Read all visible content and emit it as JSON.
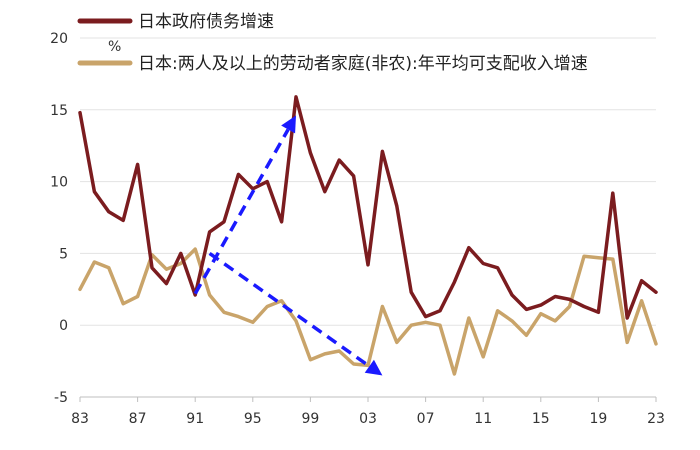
{
  "chart_data": {
    "type": "line",
    "title": "",
    "unit_label": "%",
    "xlabel": "",
    "ylabel": "",
    "x": [
      1983,
      1984,
      1985,
      1986,
      1987,
      1988,
      1989,
      1990,
      1991,
      1992,
      1993,
      1994,
      1995,
      1996,
      1997,
      1998,
      1999,
      2000,
      2001,
      2002,
      2003,
      2004,
      2005,
      2006,
      2007,
      2008,
      2009,
      2010,
      2011,
      2012,
      2013,
      2014,
      2015,
      2016,
      2017,
      2018,
      2019,
      2020,
      2021,
      2022,
      2023
    ],
    "x_tick_labels": [
      "83",
      "87",
      "91",
      "95",
      "99",
      "03",
      "07",
      "11",
      "15",
      "19",
      "23"
    ],
    "x_tick_years": [
      1983,
      1987,
      1991,
      1995,
      1999,
      2003,
      2007,
      2011,
      2015,
      2019,
      2023
    ],
    "y_ticks": [
      -5,
      0,
      5,
      10,
      15,
      20
    ],
    "ylim": [
      -5,
      20
    ],
    "grid": "horizontal",
    "legend_position": "top",
    "series": [
      {
        "name": "日本政府债务增速",
        "color": "#7b1c1f",
        "values": [
          14.8,
          9.3,
          7.9,
          7.3,
          11.2,
          4.0,
          2.9,
          5.0,
          2.1,
          6.5,
          7.2,
          10.5,
          9.5,
          10.0,
          7.2,
          15.9,
          12.0,
          9.3,
          11.5,
          10.4,
          4.2,
          12.1,
          8.3,
          2.3,
          0.6,
          1.0,
          3.0,
          5.4,
          4.3,
          4.0,
          2.1,
          1.1,
          1.4,
          2.0,
          1.8,
          1.3,
          0.9,
          9.2,
          0.5,
          3.1,
          2.3
        ]
      },
      {
        "name": "日本:两人及以上的劳动者家庭(非农):年平均可支配收入增速",
        "color": "#c9a46a",
        "values": [
          2.5,
          4.4,
          4.0,
          1.5,
          2.0,
          4.9,
          3.9,
          4.3,
          5.3,
          2.1,
          0.9,
          0.6,
          0.2,
          1.3,
          1.7,
          0.3,
          -2.4,
          -2.0,
          -1.8,
          -2.7,
          -2.8,
          1.3,
          -1.2,
          0.0,
          0.2,
          0.0,
          -3.4,
          0.5,
          -2.2,
          1.0,
          0.3,
          -0.7,
          0.8,
          0.3,
          1.3,
          4.8,
          4.7,
          4.6,
          -1.2,
          1.7,
          -1.3
        ]
      }
    ],
    "annotations": [
      {
        "type": "dashed-arrow",
        "color": "#1a1aff",
        "from": [
          1991,
          2.2
        ],
        "to": [
          1998,
          14.6
        ]
      },
      {
        "type": "dashed-arrow",
        "color": "#1a1aff",
        "from": [
          1992,
          5.0
        ],
        "to": [
          2004,
          -3.5
        ]
      }
    ]
  }
}
